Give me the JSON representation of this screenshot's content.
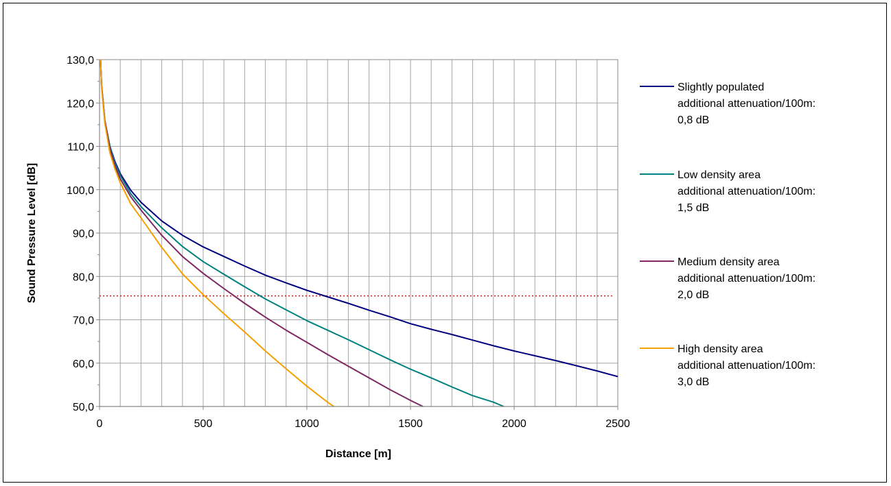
{
  "chart_data": {
    "type": "line",
    "title": "",
    "xlabel": "Distance [m]",
    "ylabel": "Sound Pressure Level [dB]",
    "xlim": [
      0,
      2500
    ],
    "ylim": [
      50,
      130
    ],
    "x_ticks": [
      0,
      500,
      1000,
      1500,
      2000,
      2500
    ],
    "x_tick_labels": [
      "0",
      "500",
      "1000",
      "1500",
      "2000",
      "2500"
    ],
    "x_minor_step": 100,
    "y_ticks": [
      50,
      60,
      70,
      80,
      90,
      100,
      110,
      120,
      130
    ],
    "y_tick_labels": [
      "50,0",
      "60,0",
      "70,0",
      "80,0",
      "90,0",
      "100,0",
      "110,0",
      "120,0",
      "130,0"
    ],
    "grid": true,
    "legend_position": "right",
    "reference_line": {
      "y": 75.5,
      "color": "#d42020",
      "style": "dotted"
    },
    "series": [
      {
        "name": "Slightly populated additional attenuation/100m: 0,8 dB",
        "legend_lines": [
          "Slightly populated",
          "additional attenuation/100m:",
          "0,8 dB"
        ],
        "color": "#00007f",
        "x": [
          5,
          10,
          25,
          50,
          75,
          100,
          150,
          200,
          300,
          400,
          500,
          600,
          700,
          800,
          900,
          1000,
          1100,
          1200,
          1300,
          1400,
          1500,
          1600,
          1700,
          1800,
          1900,
          2000,
          2100,
          2200,
          2300,
          2400,
          2500
        ],
        "y": [
          130.0,
          124.0,
          116.0,
          110.0,
          106.4,
          103.7,
          99.9,
          97.1,
          92.8,
          89.5,
          86.8,
          84.6,
          82.4,
          80.3,
          78.5,
          76.8,
          75.3,
          73.8,
          72.2,
          70.7,
          69.1,
          67.8,
          66.6,
          65.3,
          64.0,
          62.8,
          61.7,
          60.6,
          59.4,
          58.2,
          56.9
        ]
      },
      {
        "name": "Low density area additional attenuation/100m: 1,5 dB",
        "legend_lines": [
          "Low density area",
          "additional attenuation/100m:",
          "1,5 dB"
        ],
        "color": "#008080",
        "x": [
          5,
          10,
          25,
          50,
          75,
          100,
          150,
          200,
          300,
          400,
          500,
          600,
          700,
          800,
          900,
          1000,
          1100,
          1200,
          1300,
          1400,
          1500,
          1600,
          1700,
          1800,
          1900,
          1950
        ],
        "y": [
          130.0,
          124.0,
          116.0,
          110.0,
          106.0,
          103.3,
          99.1,
          96.1,
          91.2,
          86.9,
          83.4,
          80.5,
          77.6,
          74.8,
          72.3,
          69.8,
          67.6,
          65.4,
          63.1,
          60.8,
          58.6,
          56.6,
          54.5,
          52.5,
          51.0,
          49.8
        ]
      },
      {
        "name": "Medium density area additional attenuation/100m: 2,0 dB",
        "legend_lines": [
          "Medium density area",
          "additional attenuation/100m:",
          "2,0 dB"
        ],
        "color": "#7f2760",
        "x": [
          5,
          10,
          25,
          50,
          75,
          100,
          150,
          200,
          300,
          400,
          500,
          600,
          700,
          800,
          900,
          1000,
          1100,
          1200,
          1300,
          1400,
          1500,
          1560
        ],
        "y": [
          130.0,
          124.0,
          116.0,
          109.5,
          105.4,
          102.5,
          98.4,
          95.3,
          89.5,
          84.6,
          80.7,
          77.2,
          73.8,
          70.6,
          67.6,
          64.8,
          62.0,
          59.3,
          56.6,
          53.9,
          51.4,
          49.8
        ]
      },
      {
        "name": "High density area additional attenuation/100m: 3,0 dB",
        "legend_lines": [
          "High density area",
          "additional attenuation/100m:",
          "3,0 dB"
        ],
        "color": "#f5a000",
        "x": [
          5,
          10,
          25,
          50,
          75,
          100,
          150,
          200,
          300,
          400,
          500,
          600,
          700,
          800,
          900,
          1000,
          1100,
          1130
        ],
        "y": [
          130.0,
          123.5,
          115.5,
          108.5,
          104.7,
          101.6,
          96.8,
          93.5,
          86.7,
          80.6,
          75.8,
          71.4,
          67.2,
          62.8,
          58.7,
          54.7,
          51.0,
          49.8
        ]
      }
    ]
  }
}
